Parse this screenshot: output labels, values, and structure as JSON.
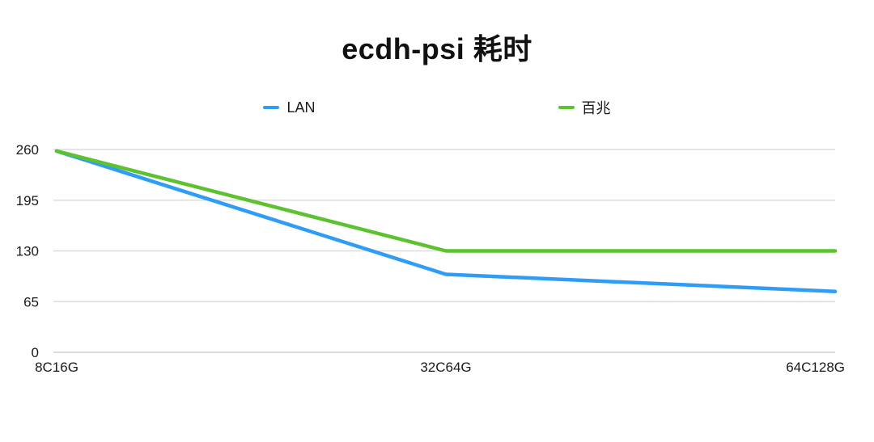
{
  "title": "ecdh-psi 耗时",
  "colors": {
    "grid": "#dcdcdc",
    "axis": "#cfcfcf",
    "text": "#1a1a1a"
  },
  "chart_data": {
    "type": "line",
    "title": "ecdh-psi 耗时",
    "categories": [
      "8C16G",
      "32C64G",
      "64C128G"
    ],
    "series": [
      {
        "name": "LAN",
        "color": "#2f9df5",
        "values": [
          258,
          100,
          78
        ]
      },
      {
        "name": "百兆",
        "color": "#5cc230",
        "values": [
          258,
          130,
          130
        ]
      }
    ],
    "yticks": [
      0,
      65,
      130,
      195,
      260
    ],
    "ylim": [
      0,
      260
    ],
    "grid": true,
    "legend_position": "top",
    "xlabel": "",
    "ylabel": ""
  }
}
